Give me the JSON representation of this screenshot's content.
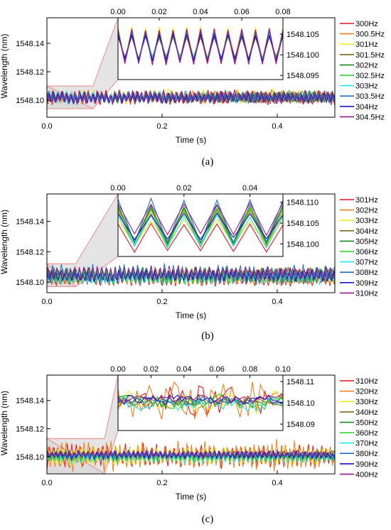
{
  "chart_data": [
    {
      "type": "line",
      "panel_label": "(a)",
      "xlabel": "Time (s)",
      "ylabel": "Wavelength (nm)",
      "xlim": [
        0,
        0.5
      ],
      "ylim": [
        1548.088,
        1548.158
      ],
      "x_ticks": [
        "0.0",
        "0.2",
        "0.4"
      ],
      "x_tick_values": [
        0,
        0.2,
        0.4
      ],
      "y_ticks": [
        "1548.10",
        "1548.12",
        "1548.14"
      ],
      "y_tick_values": [
        1548.1,
        1548.12,
        1548.14
      ],
      "legend_position": "right",
      "grid": false,
      "zoom_region": {
        "x": [
          0,
          0.08
        ],
        "y": [
          1548.094,
          1548.11
        ]
      },
      "inset": {
        "xlim": [
          0,
          0.08
        ],
        "ylim": [
          1548.094,
          1548.109
        ],
        "x_ticks": [
          "0.00",
          "0.02",
          "0.04",
          "0.06",
          "0.08"
        ],
        "x_tick_values": [
          0,
          0.02,
          0.04,
          0.06,
          0.08
        ],
        "y_ticks": [
          "1548.095",
          "1548.100",
          "1548.105"
        ],
        "y_tick_values": [
          1548.095,
          1548.1,
          1548.105
        ],
        "period": 0.00667,
        "series": [
          {
            "name": "300Hz",
            "low": 1548.0975,
            "high": 1548.1055
          },
          {
            "name": "300.5Hz",
            "low": 1548.0985,
            "high": 1548.1065
          },
          {
            "name": "301Hz",
            "low": 1548.098,
            "high": 1548.107
          },
          {
            "name": "301.5Hz",
            "low": 1548.099,
            "high": 1548.1045
          },
          {
            "name": "302Hz",
            "low": 1548.0985,
            "high": 1548.1055
          },
          {
            "name": "302.5Hz",
            "low": 1548.099,
            "high": 1548.105
          },
          {
            "name": "303Hz",
            "low": 1548.0985,
            "high": 1548.106
          },
          {
            "name": "303.5Hz",
            "low": 1548.098,
            "high": 1548.106
          },
          {
            "name": "304Hz",
            "low": 1548.0985,
            "high": 1548.105
          },
          {
            "name": "304.5Hz",
            "low": 1548.0975,
            "high": 1548.1065
          }
        ]
      },
      "series": [
        {
          "name": "300Hz",
          "color": "#e8141e",
          "low": 1548.0975,
          "high": 1548.1055
        },
        {
          "name": "300.5Hz",
          "color": "#f07f1a",
          "low": 1548.0985,
          "high": 1548.1065
        },
        {
          "name": "301Hz",
          "color": "#f2ec1c",
          "low": 1548.098,
          "high": 1548.107
        },
        {
          "name": "301.5Hz",
          "color": "#7a6a14",
          "low": 1548.099,
          "high": 1548.1045
        },
        {
          "name": "302Hz",
          "color": "#148a1e",
          "low": 1548.0985,
          "high": 1548.1055
        },
        {
          "name": "302.5Hz",
          "color": "#1ed21e",
          "low": 1548.099,
          "high": 1548.105
        },
        {
          "name": "303Hz",
          "color": "#1ee6ee",
          "low": 1548.0985,
          "high": 1548.106
        },
        {
          "name": "303.5Hz",
          "color": "#1e6ec8",
          "low": 1548.098,
          "high": 1548.106
        },
        {
          "name": "304Hz",
          "color": "#1414d2",
          "low": 1548.0985,
          "high": 1548.105
        },
        {
          "name": "304.5Hz",
          "color": "#a0148c",
          "low": 1548.0975,
          "high": 1548.1065
        }
      ]
    },
    {
      "type": "line",
      "panel_label": "(b)",
      "xlabel": "Time (s)",
      "ylabel": "Wavelength (nm)",
      "xlim": [
        0,
        0.5
      ],
      "ylim": [
        1548.093,
        1548.158
      ],
      "x_ticks": [
        "0.0",
        "0.2",
        "0.4"
      ],
      "x_tick_values": [
        0,
        0.2,
        0.4
      ],
      "y_ticks": [
        "1548.10",
        "1548.12",
        "1548.14"
      ],
      "y_tick_values": [
        1548.1,
        1548.12,
        1548.14
      ],
      "legend_position": "right",
      "grid": false,
      "zoom_region": {
        "x": [
          0,
          0.05
        ],
        "y": [
          1548.097,
          1548.112
        ]
      },
      "inset": {
        "xlim": [
          0,
          0.05
        ],
        "ylim": [
          1548.097,
          1548.112
        ],
        "x_ticks": [
          "0.00",
          "0.02",
          "0.04"
        ],
        "x_tick_values": [
          0,
          0.02,
          0.04
        ],
        "y_ticks": [
          "1548.100",
          "1548.105",
          "1548.110"
        ],
        "y_tick_values": [
          1548.1,
          1548.105,
          1548.11
        ],
        "period": 0.01,
        "series": [
          {
            "name": "301Hz",
            "low": 1548.098,
            "high": 1548.105
          },
          {
            "name": "302Hz",
            "low": 1548.099,
            "high": 1548.108
          },
          {
            "name": "303Hz",
            "low": 1548.0995,
            "high": 1548.106
          },
          {
            "name": "304Hz",
            "low": 1548.1,
            "high": 1548.109
          },
          {
            "name": "305Hz",
            "low": 1548.1,
            "high": 1548.1095
          },
          {
            "name": "306Hz",
            "low": 1548.0995,
            "high": 1548.1085
          },
          {
            "name": "307Hz",
            "low": 1548.099,
            "high": 1548.107
          },
          {
            "name": "308Hz",
            "low": 1548.1,
            "high": 1548.111
          },
          {
            "name": "309Hz",
            "low": 1548.101,
            "high": 1548.1075
          },
          {
            "name": "310Hz",
            "low": 1548.102,
            "high": 1548.11
          }
        ]
      },
      "series": [
        {
          "name": "301Hz",
          "color": "#e8141e",
          "low": 1548.098,
          "high": 1548.105
        },
        {
          "name": "302Hz",
          "color": "#f07f1a",
          "low": 1548.099,
          "high": 1548.108
        },
        {
          "name": "303Hz",
          "color": "#f2ec1c",
          "low": 1548.0995,
          "high": 1548.106
        },
        {
          "name": "304Hz",
          "color": "#7a6a14",
          "low": 1548.1,
          "high": 1548.109
        },
        {
          "name": "305Hz",
          "color": "#148a1e",
          "low": 1548.1,
          "high": 1548.1095
        },
        {
          "name": "306Hz",
          "color": "#1ed21e",
          "low": 1548.0995,
          "high": 1548.1085
        },
        {
          "name": "307Hz",
          "color": "#1ee6ee",
          "low": 1548.099,
          "high": 1548.107
        },
        {
          "name": "308Hz",
          "color": "#1e6ec8",
          "low": 1548.1,
          "high": 1548.111
        },
        {
          "name": "309Hz",
          "color": "#1414d2",
          "low": 1548.101,
          "high": 1548.1075
        },
        {
          "name": "310Hz",
          "color": "#a0148c",
          "low": 1548.102,
          "high": 1548.11
        }
      ]
    },
    {
      "type": "line",
      "panel_label": "(c)",
      "xlabel": "Time (s)",
      "ylabel": "Wavelength (nm)",
      "xlim": [
        0,
        0.5
      ],
      "ylim": [
        1548.088,
        1548.158
      ],
      "x_ticks": [
        "0.0",
        "0.2",
        "0.4"
      ],
      "x_tick_values": [
        0,
        0.2,
        0.4
      ],
      "y_ticks": [
        "1548.10",
        "1548.12",
        "1548.14"
      ],
      "y_tick_values": [
        1548.1,
        1548.12,
        1548.14
      ],
      "legend_position": "right",
      "grid": false,
      "zoom_region": {
        "x": [
          0,
          0.1
        ],
        "y": [
          1548.088,
          1548.113
        ]
      },
      "inset": {
        "xlim": [
          0,
          0.1
        ],
        "ylim": [
          1548.087,
          1548.113
        ],
        "x_ticks": [
          "0.00",
          "0.02",
          "0.04",
          "0.06",
          "0.08",
          "0.10"
        ],
        "x_tick_values": [
          0,
          0.02,
          0.04,
          0.06,
          0.08,
          0.1
        ],
        "y_ticks": [
          "1548.09",
          "1548.10",
          "1548.11"
        ],
        "y_tick_values": [
          1548.09,
          1548.1,
          1548.11
        ],
        "period": 0.005,
        "series": [
          {
            "name": "310Hz",
            "low": 1548.094,
            "high": 1548.108
          },
          {
            "name": "320Hz",
            "low": 1548.092,
            "high": 1548.11
          },
          {
            "name": "330Hz",
            "low": 1548.095,
            "high": 1548.106
          },
          {
            "name": "340Hz",
            "low": 1548.098,
            "high": 1548.104
          },
          {
            "name": "350Hz",
            "low": 1548.098,
            "high": 1548.103
          },
          {
            "name": "360Hz",
            "low": 1548.097,
            "high": 1548.104
          },
          {
            "name": "370Hz",
            "low": 1548.096,
            "high": 1548.103
          },
          {
            "name": "380Hz",
            "low": 1548.099,
            "high": 1548.103
          },
          {
            "name": "390Hz",
            "low": 1548.099,
            "high": 1548.104
          },
          {
            "name": "400Hz",
            "low": 1548.1,
            "high": 1548.104
          }
        ]
      },
      "series": [
        {
          "name": "310Hz",
          "color": "#e8141e",
          "low": 1548.094,
          "high": 1548.108
        },
        {
          "name": "320Hz",
          "color": "#f07f1a",
          "low": 1548.092,
          "high": 1548.11
        },
        {
          "name": "330Hz",
          "color": "#f2ec1c",
          "low": 1548.095,
          "high": 1548.106
        },
        {
          "name": "340Hz",
          "color": "#7a6a14",
          "low": 1548.098,
          "high": 1548.104
        },
        {
          "name": "350Hz",
          "color": "#148a1e",
          "low": 1548.098,
          "high": 1548.103
        },
        {
          "name": "360Hz",
          "color": "#1ed21e",
          "low": 1548.097,
          "high": 1548.104
        },
        {
          "name": "370Hz",
          "color": "#1ee6ee",
          "low": 1548.096,
          "high": 1548.103
        },
        {
          "name": "380Hz",
          "color": "#1e6ec8",
          "low": 1548.099,
          "high": 1548.103
        },
        {
          "name": "390Hz",
          "color": "#1414d2",
          "low": 1548.099,
          "high": 1548.104
        },
        {
          "name": "400Hz",
          "color": "#a0148c",
          "low": 1548.1,
          "high": 1548.104
        }
      ]
    }
  ]
}
